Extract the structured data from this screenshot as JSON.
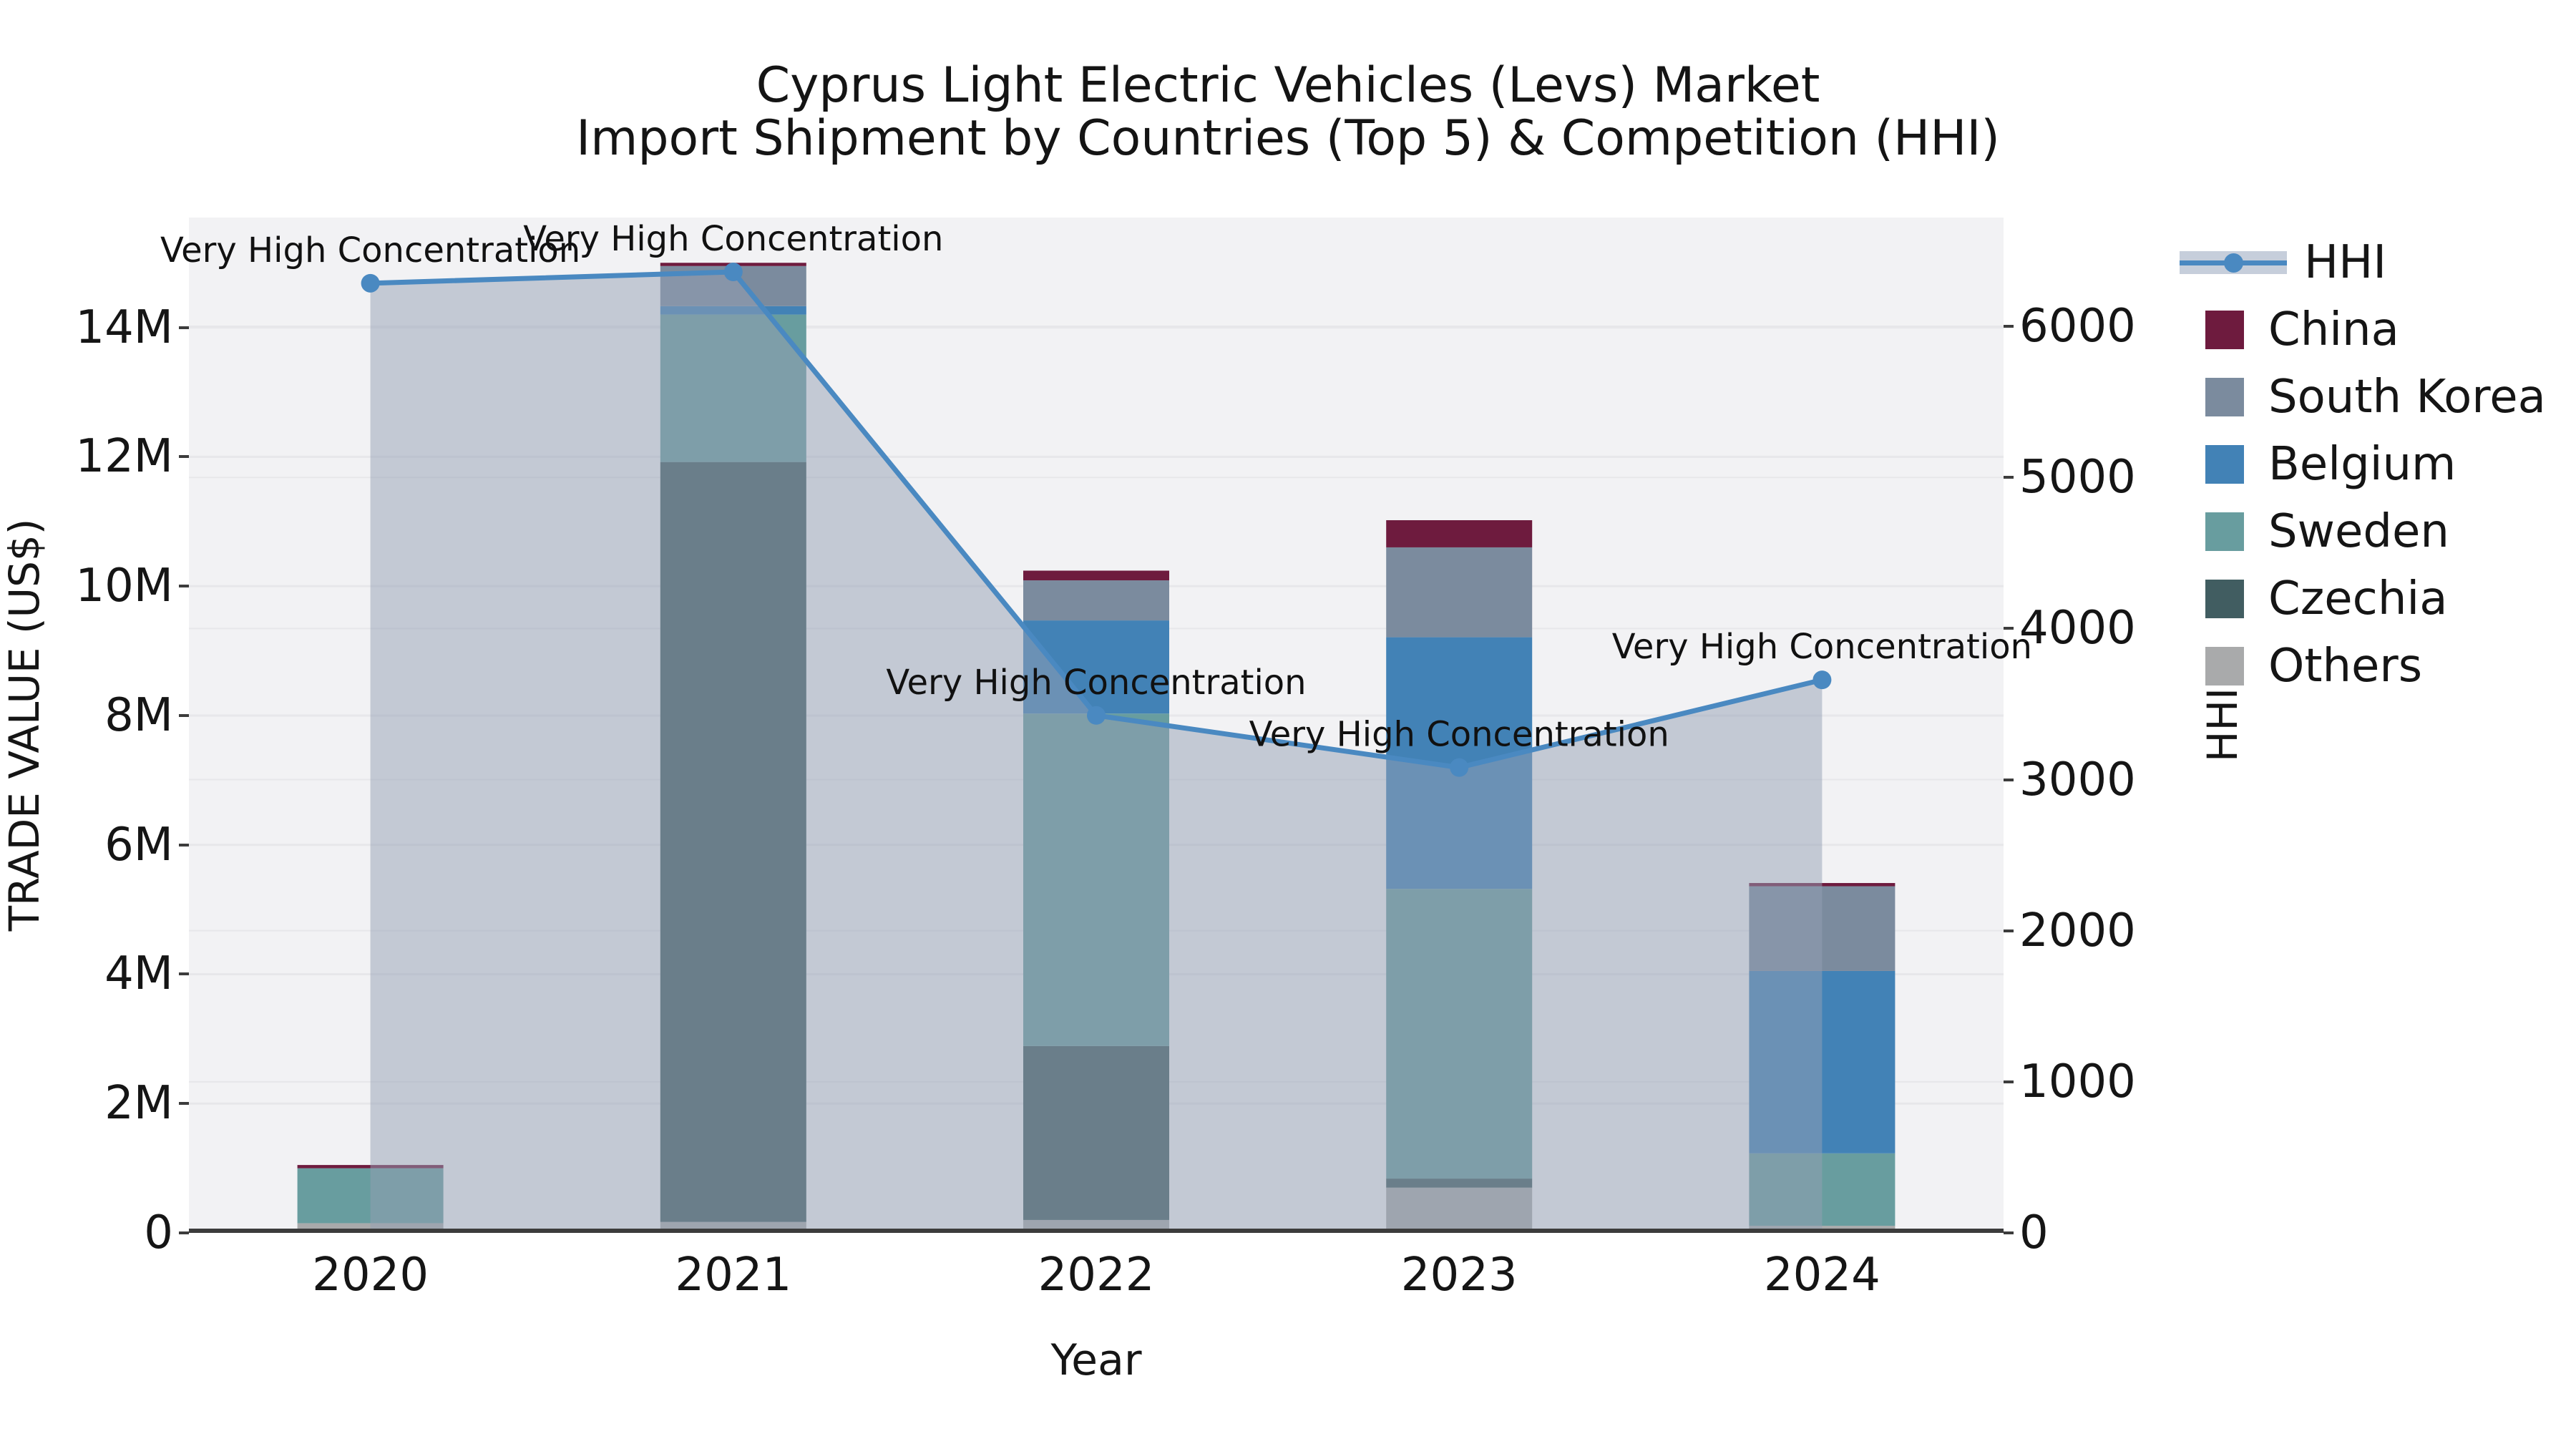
{
  "title": {
    "line1": "Cyprus Light Electric Vehicles (Levs) Market",
    "line2": "Import Shipment by Countries (Top 5) & Competition (HHI)"
  },
  "axes": {
    "x_label": "Year",
    "y_left_label": "TRADE VALUE (US$)",
    "y_right_label": "HHI",
    "y_left_max_millions": 15.7,
    "y_right_max": 6720,
    "y_left_ticks": [
      {
        "v": 0,
        "label": "0"
      },
      {
        "v": 2,
        "label": "2M"
      },
      {
        "v": 4,
        "label": "4M"
      },
      {
        "v": 6,
        "label": "6M"
      },
      {
        "v": 8,
        "label": "8M"
      },
      {
        "v": 10,
        "label": "10M"
      },
      {
        "v": 12,
        "label": "12M"
      },
      {
        "v": 14,
        "label": "14M"
      }
    ],
    "y_right_ticks": [
      {
        "v": 0,
        "label": "0"
      },
      {
        "v": 1000,
        "label": "1000"
      },
      {
        "v": 2000,
        "label": "2000"
      },
      {
        "v": 3000,
        "label": "3000"
      },
      {
        "v": 4000,
        "label": "4000"
      },
      {
        "v": 5000,
        "label": "5000"
      },
      {
        "v": 6000,
        "label": "6000"
      }
    ]
  },
  "chart_data": {
    "type": "bar+line",
    "categories": [
      "2020",
      "2021",
      "2022",
      "2023",
      "2024"
    ],
    "unit": "US$ millions",
    "xlabel": "Year",
    "ylabel_left": "TRADE VALUE (US$)",
    "ylabel_right": "HHI",
    "ylim_left_millions": [
      0,
      15.7
    ],
    "ylim_right": [
      0,
      6720
    ],
    "grid": true,
    "legend_position": "right",
    "stack_order": [
      "Others",
      "Czechia",
      "Sweden",
      "Belgium",
      "South Korea",
      "China"
    ],
    "series": [
      {
        "name": "China",
        "color": "#6e1b3e",
        "values": [
          0.05,
          0.05,
          0.15,
          0.42,
          0.05
        ]
      },
      {
        "name": "South Korea",
        "color": "#7b8b9e",
        "values": [
          0.0,
          0.62,
          0.62,
          1.39,
          1.31
        ]
      },
      {
        "name": "Belgium",
        "color": "#4282b6",
        "values": [
          0.0,
          0.13,
          1.44,
          3.89,
          2.82
        ]
      },
      {
        "name": "Sweden",
        "color": "#689d9f",
        "values": [
          0.85,
          2.28,
          5.14,
          4.48,
          1.12
        ]
      },
      {
        "name": "Czechia",
        "color": "#415d61",
        "values": [
          0.0,
          11.75,
          2.69,
          0.14,
          0.0
        ]
      },
      {
        "name": "Others",
        "color": "#a9aaab",
        "values": [
          0.15,
          0.17,
          0.2,
          0.7,
          0.11
        ]
      }
    ],
    "bar_totals_millions": [
      1.05,
      15.0,
      10.24,
      11.02,
      5.41
    ],
    "line_series": {
      "name": "HHI",
      "color": "#4a89c1",
      "area_color": "rgba(148,160,179,0.5)",
      "values": [
        6285,
        6360,
        3425,
        3080,
        3660
      ],
      "annotations": [
        "Very High Concentration",
        "Very High Concentration",
        "Very High Concentration",
        "Very High Concentration",
        "Very High Concentration"
      ]
    }
  },
  "legend": {
    "items": [
      {
        "label": "HHI",
        "type": "line",
        "color": "#4a89c1",
        "band": "#c6cedb"
      },
      {
        "label": "China",
        "type": "patch",
        "color": "#6e1b3e"
      },
      {
        "label": "South Korea",
        "type": "patch",
        "color": "#7b8b9e"
      },
      {
        "label": "Belgium",
        "type": "patch",
        "color": "#4282b6"
      },
      {
        "label": "Sweden",
        "type": "patch",
        "color": "#689d9f"
      },
      {
        "label": "Czechia",
        "type": "patch",
        "color": "#415d61"
      },
      {
        "label": "Others",
        "type": "patch",
        "color": "#a9aaab"
      }
    ]
  },
  "colors": {
    "figure_bg": "#ffffff",
    "plot_bg": "#f2f2f4",
    "grid": "#e7e7ea",
    "spine": "#3c3c3c",
    "text": "#151515",
    "annotation_text": "#111111"
  }
}
